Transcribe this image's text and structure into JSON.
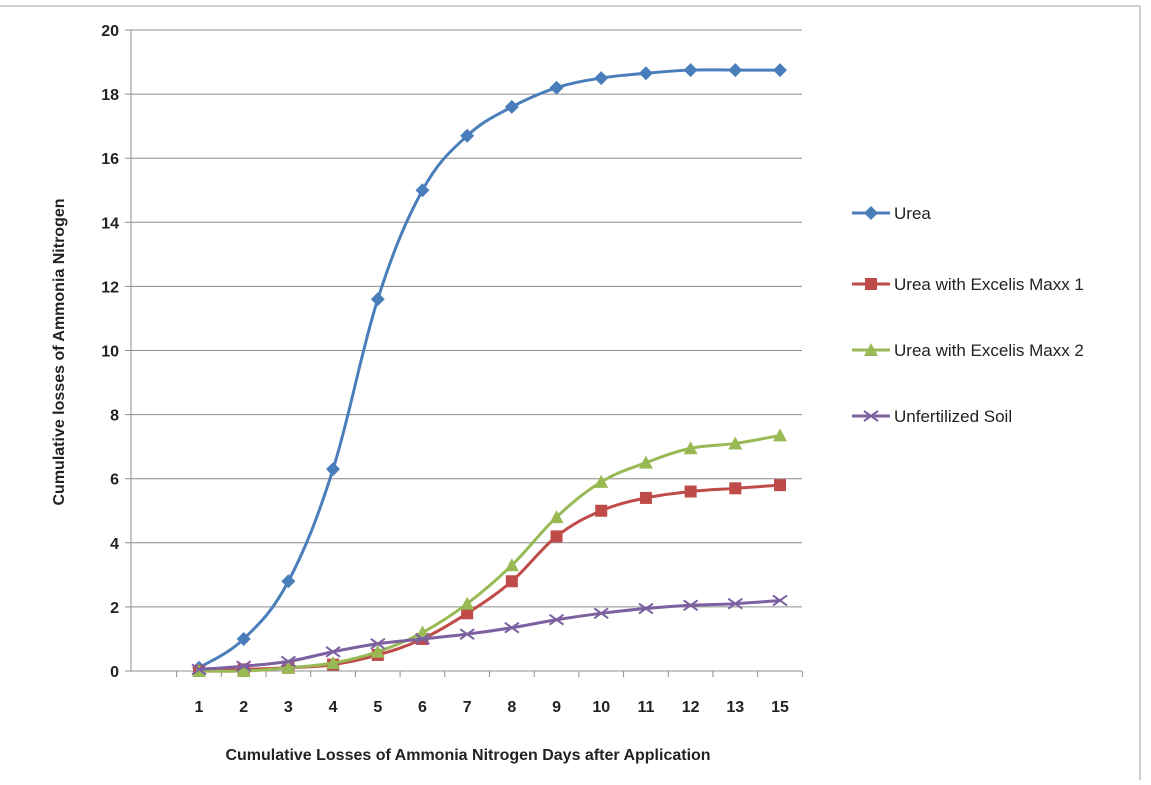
{
  "chart_data": {
    "type": "line",
    "title": "",
    "xlabel": "Cumulative Losses of Ammonia Nitrogen Days after Application",
    "ylabel": "Cumulative losses of Ammonia Nitrogen",
    "x": [
      "1",
      "2",
      "3",
      "4",
      "5",
      "6",
      "7",
      "8",
      "9",
      "10",
      "11",
      "12",
      "13",
      "15"
    ],
    "ylim": [
      0,
      20
    ],
    "yticks": [
      "0",
      "2",
      "4",
      "6",
      "8",
      "10",
      "12",
      "14",
      "16",
      "18",
      "20"
    ],
    "grid": true,
    "legend_position": "right",
    "series": [
      {
        "name": "Urea",
        "color": "#4a7ebb",
        "marker": "diamond",
        "values": [
          0.1,
          1.0,
          2.8,
          6.3,
          11.6,
          15.0,
          16.7,
          17.6,
          18.2,
          18.5,
          18.65,
          18.75,
          18.75,
          18.75
        ]
      },
      {
        "name": "Urea with Excelis Maxx  1",
        "color": "#be4b48",
        "marker": "square",
        "values": [
          0.0,
          0.05,
          0.1,
          0.2,
          0.5,
          1.0,
          1.8,
          2.8,
          4.2,
          5.0,
          5.4,
          5.6,
          5.7,
          5.8
        ]
      },
      {
        "name": "Urea with Excelis Maxx 2",
        "color": "#98b954",
        "marker": "triangle",
        "values": [
          0.0,
          0.0,
          0.1,
          0.25,
          0.6,
          1.2,
          2.1,
          3.3,
          4.8,
          5.9,
          6.5,
          6.95,
          7.1,
          7.35
        ]
      },
      {
        "name": "Unfertilized Soil",
        "color": "#7d60a0",
        "marker": "x",
        "values": [
          0.05,
          0.15,
          0.3,
          0.6,
          0.85,
          1.0,
          1.15,
          1.35,
          1.6,
          1.8,
          1.95,
          2.05,
          2.1,
          2.2
        ]
      }
    ]
  }
}
